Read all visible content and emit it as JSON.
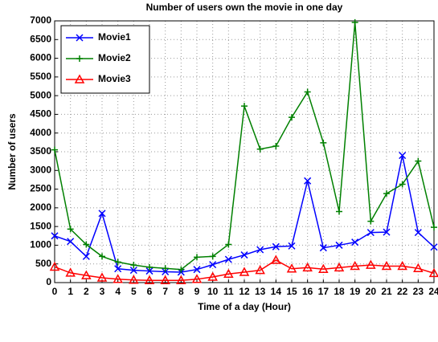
{
  "chart_data": {
    "type": "line",
    "title": "Number of users own the movie in one day",
    "x_label": "Time of a day (Hour)",
    "y_label": "Number of users",
    "x": [
      0,
      1,
      2,
      3,
      4,
      5,
      6,
      7,
      8,
      9,
      10,
      11,
      12,
      13,
      14,
      15,
      16,
      17,
      18,
      19,
      20,
      21,
      22,
      23,
      24
    ],
    "series": [
      {
        "name": "Movie1",
        "color": "#0000ff",
        "marker": "x",
        "values": [
          1250,
          1100,
          700,
          1850,
          370,
          330,
          310,
          290,
          280,
          350,
          480,
          620,
          740,
          880,
          960,
          980,
          2720,
          930,
          1000,
          1080,
          1340,
          1350,
          3400,
          1340,
          950
        ]
      },
      {
        "name": "Movie2",
        "color": "#008000",
        "marker": "+",
        "values": [
          3550,
          1430,
          1020,
          700,
          550,
          470,
          410,
          380,
          350,
          680,
          700,
          1020,
          4720,
          3570,
          3650,
          4420,
          5100,
          3740,
          1900,
          6960,
          1640,
          2380,
          2630,
          3250,
          1480
        ]
      },
      {
        "name": "Movie3",
        "color": "#ff0000",
        "marker": "triangle",
        "values": [
          420,
          260,
          190,
          130,
          90,
          70,
          60,
          60,
          60,
          90,
          150,
          230,
          280,
          330,
          600,
          370,
          400,
          360,
          400,
          440,
          470,
          440,
          440,
          380,
          250
        ]
      }
    ],
    "xlim": [
      0,
      24
    ],
    "xticks": [
      0,
      1,
      2,
      3,
      4,
      5,
      6,
      7,
      8,
      9,
      10,
      11,
      12,
      13,
      14,
      15,
      16,
      17,
      18,
      19,
      20,
      21,
      22,
      23,
      24
    ],
    "ylim": [
      0,
      7000
    ],
    "yticks": [
      0,
      500,
      1000,
      1500,
      2000,
      2500,
      3000,
      3500,
      4000,
      4500,
      5000,
      5500,
      6000,
      6500,
      7000
    ],
    "grid": true,
    "legend": "upper-left"
  }
}
